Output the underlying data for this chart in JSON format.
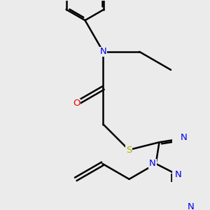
{
  "background_color": "#ebebeb",
  "line_color": "#000000",
  "bond_lw": 1.8,
  "atom_colors": {
    "N": "#0000ee",
    "O": "#ee0000",
    "S": "#aaaa00",
    "C": "#000000"
  },
  "font_size": 9.5,
  "figsize": [
    3.0,
    3.0
  ],
  "dpi": 100
}
